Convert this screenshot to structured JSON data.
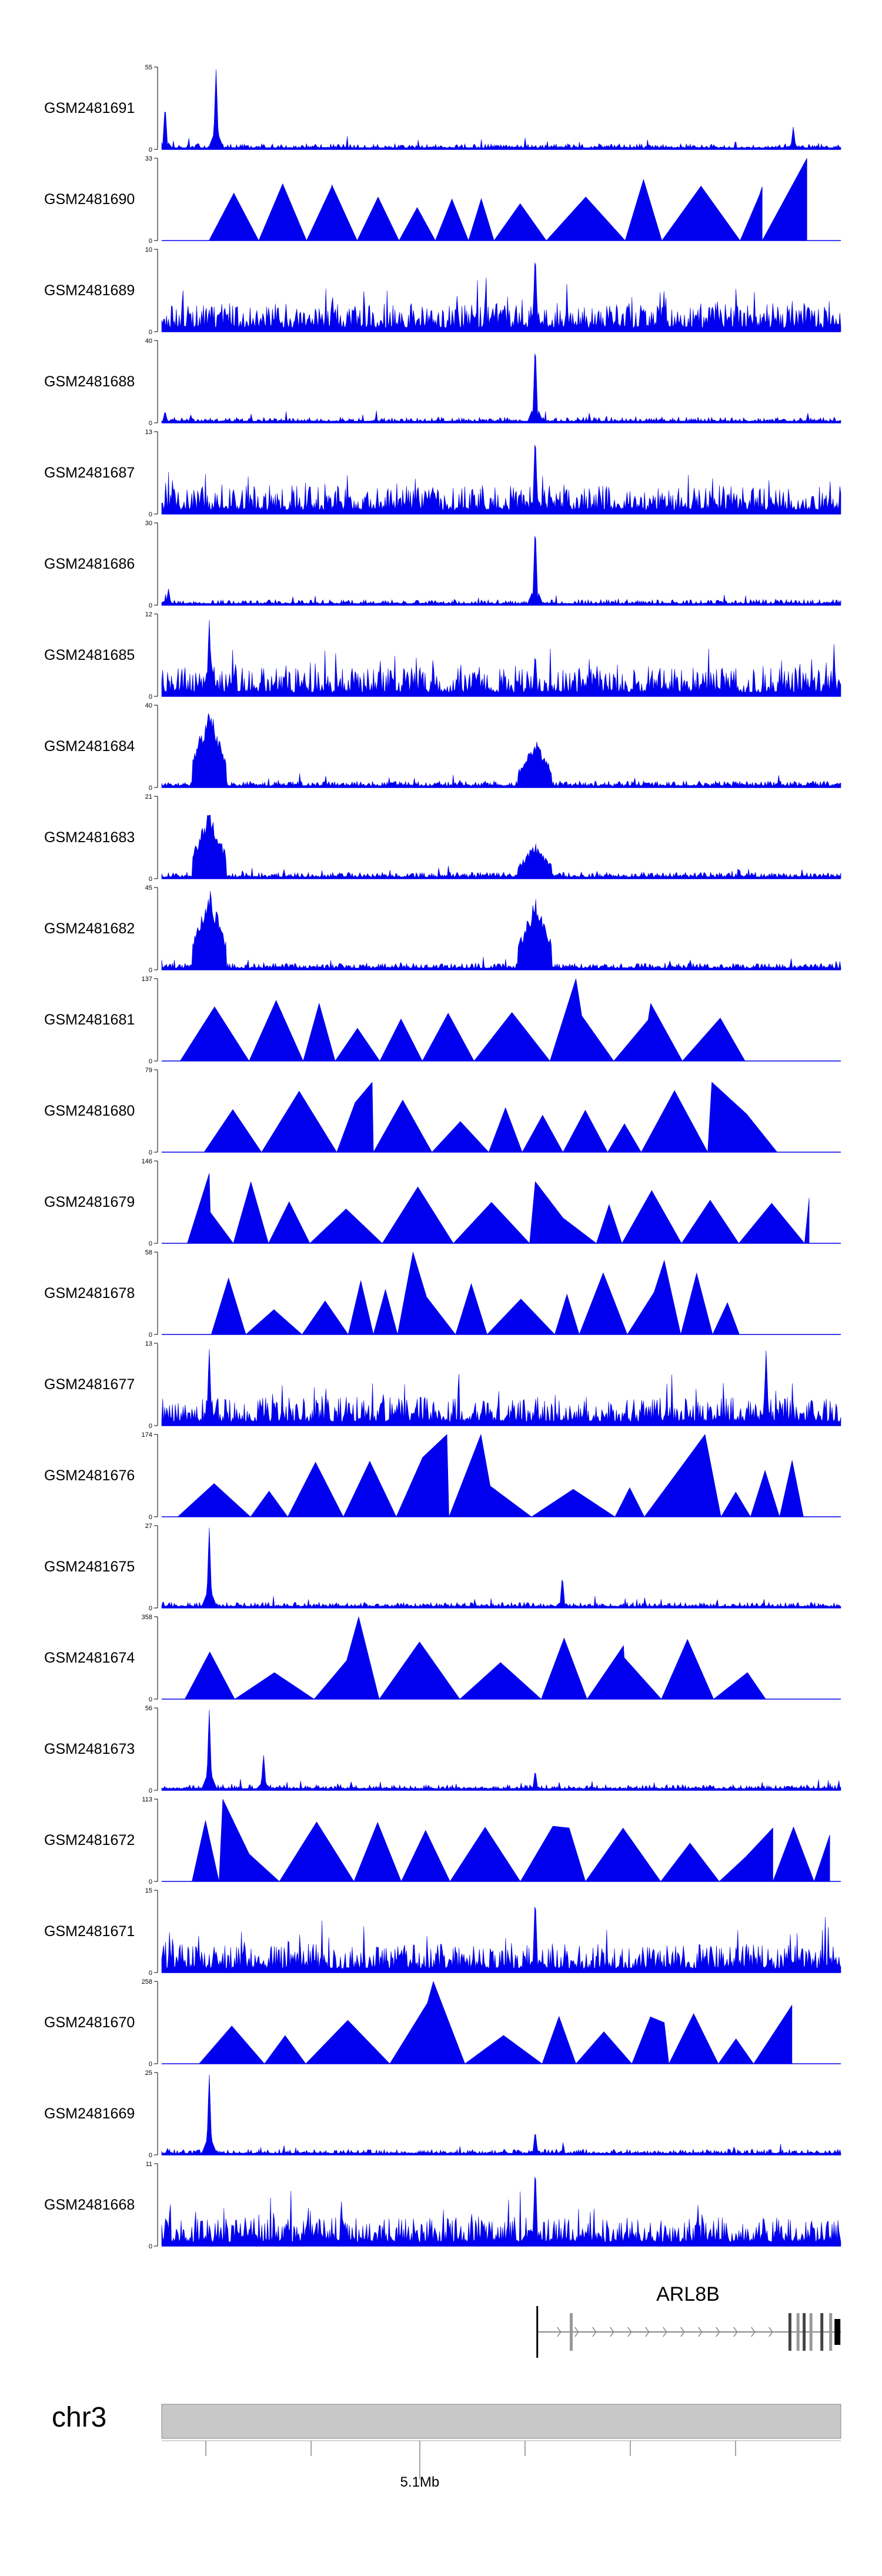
{
  "chart_data": {
    "type": "area",
    "title": "",
    "series_color": "#0000ee",
    "tracks": [
      {
        "name": "GSM2481691",
        "ymax": "55",
        "yzero": "0",
        "pattern": "peaky",
        "peaks": [
          {
            "x": 0.08,
            "h": 1.0
          },
          {
            "x": 0.005,
            "h": 0.55
          },
          {
            "x": 0.93,
            "h": 0.28
          }
        ]
      },
      {
        "name": "GSM2481690",
        "ymax": "33",
        "yzero": "0",
        "pattern": "triangles",
        "peaks": [
          {
            "x": 0.25,
            "h": 0.65
          },
          {
            "x": 0.95,
            "h": 1.0
          },
          {
            "x": 0.88,
            "h": 0.55
          }
        ]
      },
      {
        "name": "GSM2481689",
        "ymax": "10",
        "yzero": "0",
        "pattern": "dense",
        "peaks": [
          {
            "x": 0.55,
            "h": 1.0
          }
        ]
      },
      {
        "name": "GSM2481688",
        "ymax": "40",
        "yzero": "0",
        "pattern": "peaky",
        "peaks": [
          {
            "x": 0.55,
            "h": 1.0
          },
          {
            "x": 0.005,
            "h": 0.15
          }
        ]
      },
      {
        "name": "GSM2481687",
        "ymax": "13",
        "yzero": "0",
        "pattern": "dense",
        "peaks": [
          {
            "x": 0.55,
            "h": 1.0
          }
        ]
      },
      {
        "name": "GSM2481686",
        "ymax": "30",
        "yzero": "0",
        "pattern": "peaky",
        "peaks": [
          {
            "x": 0.55,
            "h": 1.0
          },
          {
            "x": 0.01,
            "h": 0.2
          }
        ]
      },
      {
        "name": "GSM2481685",
        "ymax": "12",
        "yzero": "0",
        "pattern": "dense",
        "peaks": [
          {
            "x": 0.07,
            "h": 0.95
          },
          {
            "x": 0.55,
            "h": 0.55
          }
        ]
      },
      {
        "name": "GSM2481684",
        "ymax": "40",
        "yzero": "0",
        "pattern": "bump",
        "peaks": [
          {
            "x": 0.07,
            "h": 1.0
          },
          {
            "x": 0.55,
            "h": 0.6
          }
        ]
      },
      {
        "name": "GSM2481683",
        "ymax": "21",
        "yzero": "0",
        "pattern": "bump",
        "peaks": [
          {
            "x": 0.07,
            "h": 0.85
          },
          {
            "x": 0.55,
            "h": 0.45
          }
        ]
      },
      {
        "name": "GSM2481682",
        "ymax": "45",
        "yzero": "0",
        "pattern": "bump",
        "peaks": [
          {
            "x": 0.07,
            "h": 1.0
          },
          {
            "x": 0.55,
            "h": 0.9
          }
        ]
      },
      {
        "name": "GSM2481681",
        "ymax": "137",
        "yzero": "0",
        "pattern": "triangles",
        "peaks": [
          {
            "x": 0.61,
            "h": 1.0
          },
          {
            "x": 0.72,
            "h": 0.7
          },
          {
            "x": 0.85,
            "h": 0.0
          }
        ]
      },
      {
        "name": "GSM2481680",
        "ymax": "79",
        "yzero": "0",
        "pattern": "triangles",
        "peaks": [
          {
            "x": 0.31,
            "h": 0.85
          },
          {
            "x": 0.81,
            "h": 0.85
          },
          {
            "x": 0.93,
            "h": 0.0
          }
        ]
      },
      {
        "name": "GSM2481679",
        "ymax": "146",
        "yzero": "0",
        "pattern": "triangles",
        "peaks": [
          {
            "x": 0.07,
            "h": 0.85
          },
          {
            "x": 0.55,
            "h": 0.75
          }
        ]
      },
      {
        "name": "GSM2481678",
        "ymax": "58",
        "yzero": "0",
        "pattern": "triangles",
        "peaks": [
          {
            "x": 0.37,
            "h": 1.0
          },
          {
            "x": 0.74,
            "h": 0.9
          }
        ]
      },
      {
        "name": "GSM2481677",
        "ymax": "13",
        "yzero": "0",
        "pattern": "dense",
        "peaks": [
          {
            "x": 0.07,
            "h": 0.95
          },
          {
            "x": 0.89,
            "h": 0.95
          }
        ]
      },
      {
        "name": "GSM2481676",
        "ymax": "174",
        "yzero": "0",
        "pattern": "triangles",
        "peaks": [
          {
            "x": 0.42,
            "h": 1.0
          },
          {
            "x": 0.47,
            "h": 1.0
          },
          {
            "x": 0.8,
            "h": 1.0
          }
        ]
      },
      {
        "name": "GSM2481675",
        "ymax": "27",
        "yzero": "0",
        "pattern": "peaky",
        "peaks": [
          {
            "x": 0.07,
            "h": 1.0
          },
          {
            "x": 0.59,
            "h": 0.4
          }
        ]
      },
      {
        "name": "GSM2481674",
        "ymax": "358",
        "yzero": "0",
        "pattern": "triangles",
        "peaks": [
          {
            "x": 0.29,
            "h": 1.0
          },
          {
            "x": 0.68,
            "h": 0.65
          }
        ]
      },
      {
        "name": "GSM2481673",
        "ymax": "56",
        "yzero": "0",
        "pattern": "peaky",
        "peaks": [
          {
            "x": 0.07,
            "h": 1.0
          },
          {
            "x": 0.15,
            "h": 0.45
          },
          {
            "x": 0.55,
            "h": 0.25
          }
        ]
      },
      {
        "name": "GSM2481672",
        "ymax": "113",
        "yzero": "0",
        "pattern": "triangles",
        "peaks": [
          {
            "x": 0.09,
            "h": 1.0
          },
          {
            "x": 0.6,
            "h": 0.65
          },
          {
            "x": 0.9,
            "h": 0.65
          }
        ]
      },
      {
        "name": "GSM2481671",
        "ymax": "15",
        "yzero": "0",
        "pattern": "dense",
        "peaks": [
          {
            "x": 0.55,
            "h": 0.95
          }
        ]
      },
      {
        "name": "GSM2481670",
        "ymax": "258",
        "yzero": "0",
        "pattern": "triangles",
        "peaks": [
          {
            "x": 0.4,
            "h": 1.0
          },
          {
            "x": 0.74,
            "h": 0.5
          }
        ]
      },
      {
        "name": "GSM2481669",
        "ymax": "25",
        "yzero": "0",
        "pattern": "peaky",
        "peaks": [
          {
            "x": 0.07,
            "h": 1.0
          },
          {
            "x": 0.55,
            "h": 0.3
          }
        ]
      },
      {
        "name": "GSM2481668",
        "ymax": "11",
        "yzero": "0",
        "pattern": "dense",
        "peaks": [
          {
            "x": 0.55,
            "h": 1.0
          }
        ]
      }
    ],
    "gene": {
      "name": "ARL8B",
      "strand": "+",
      "start_frac": 0.553,
      "end_frac": 1.0,
      "exons_frac": [
        0.553,
        0.603,
        0.925,
        0.937,
        0.946,
        0.956,
        0.972,
        0.985,
        0.995
      ]
    },
    "ideogram": {
      "chromosome": "chr3",
      "ticks_frac": [
        0.065,
        0.22,
        0.38,
        0.535,
        0.69,
        0.845
      ],
      "labeled_tick_frac": 0.38,
      "position_label": "5.1Mb"
    }
  }
}
